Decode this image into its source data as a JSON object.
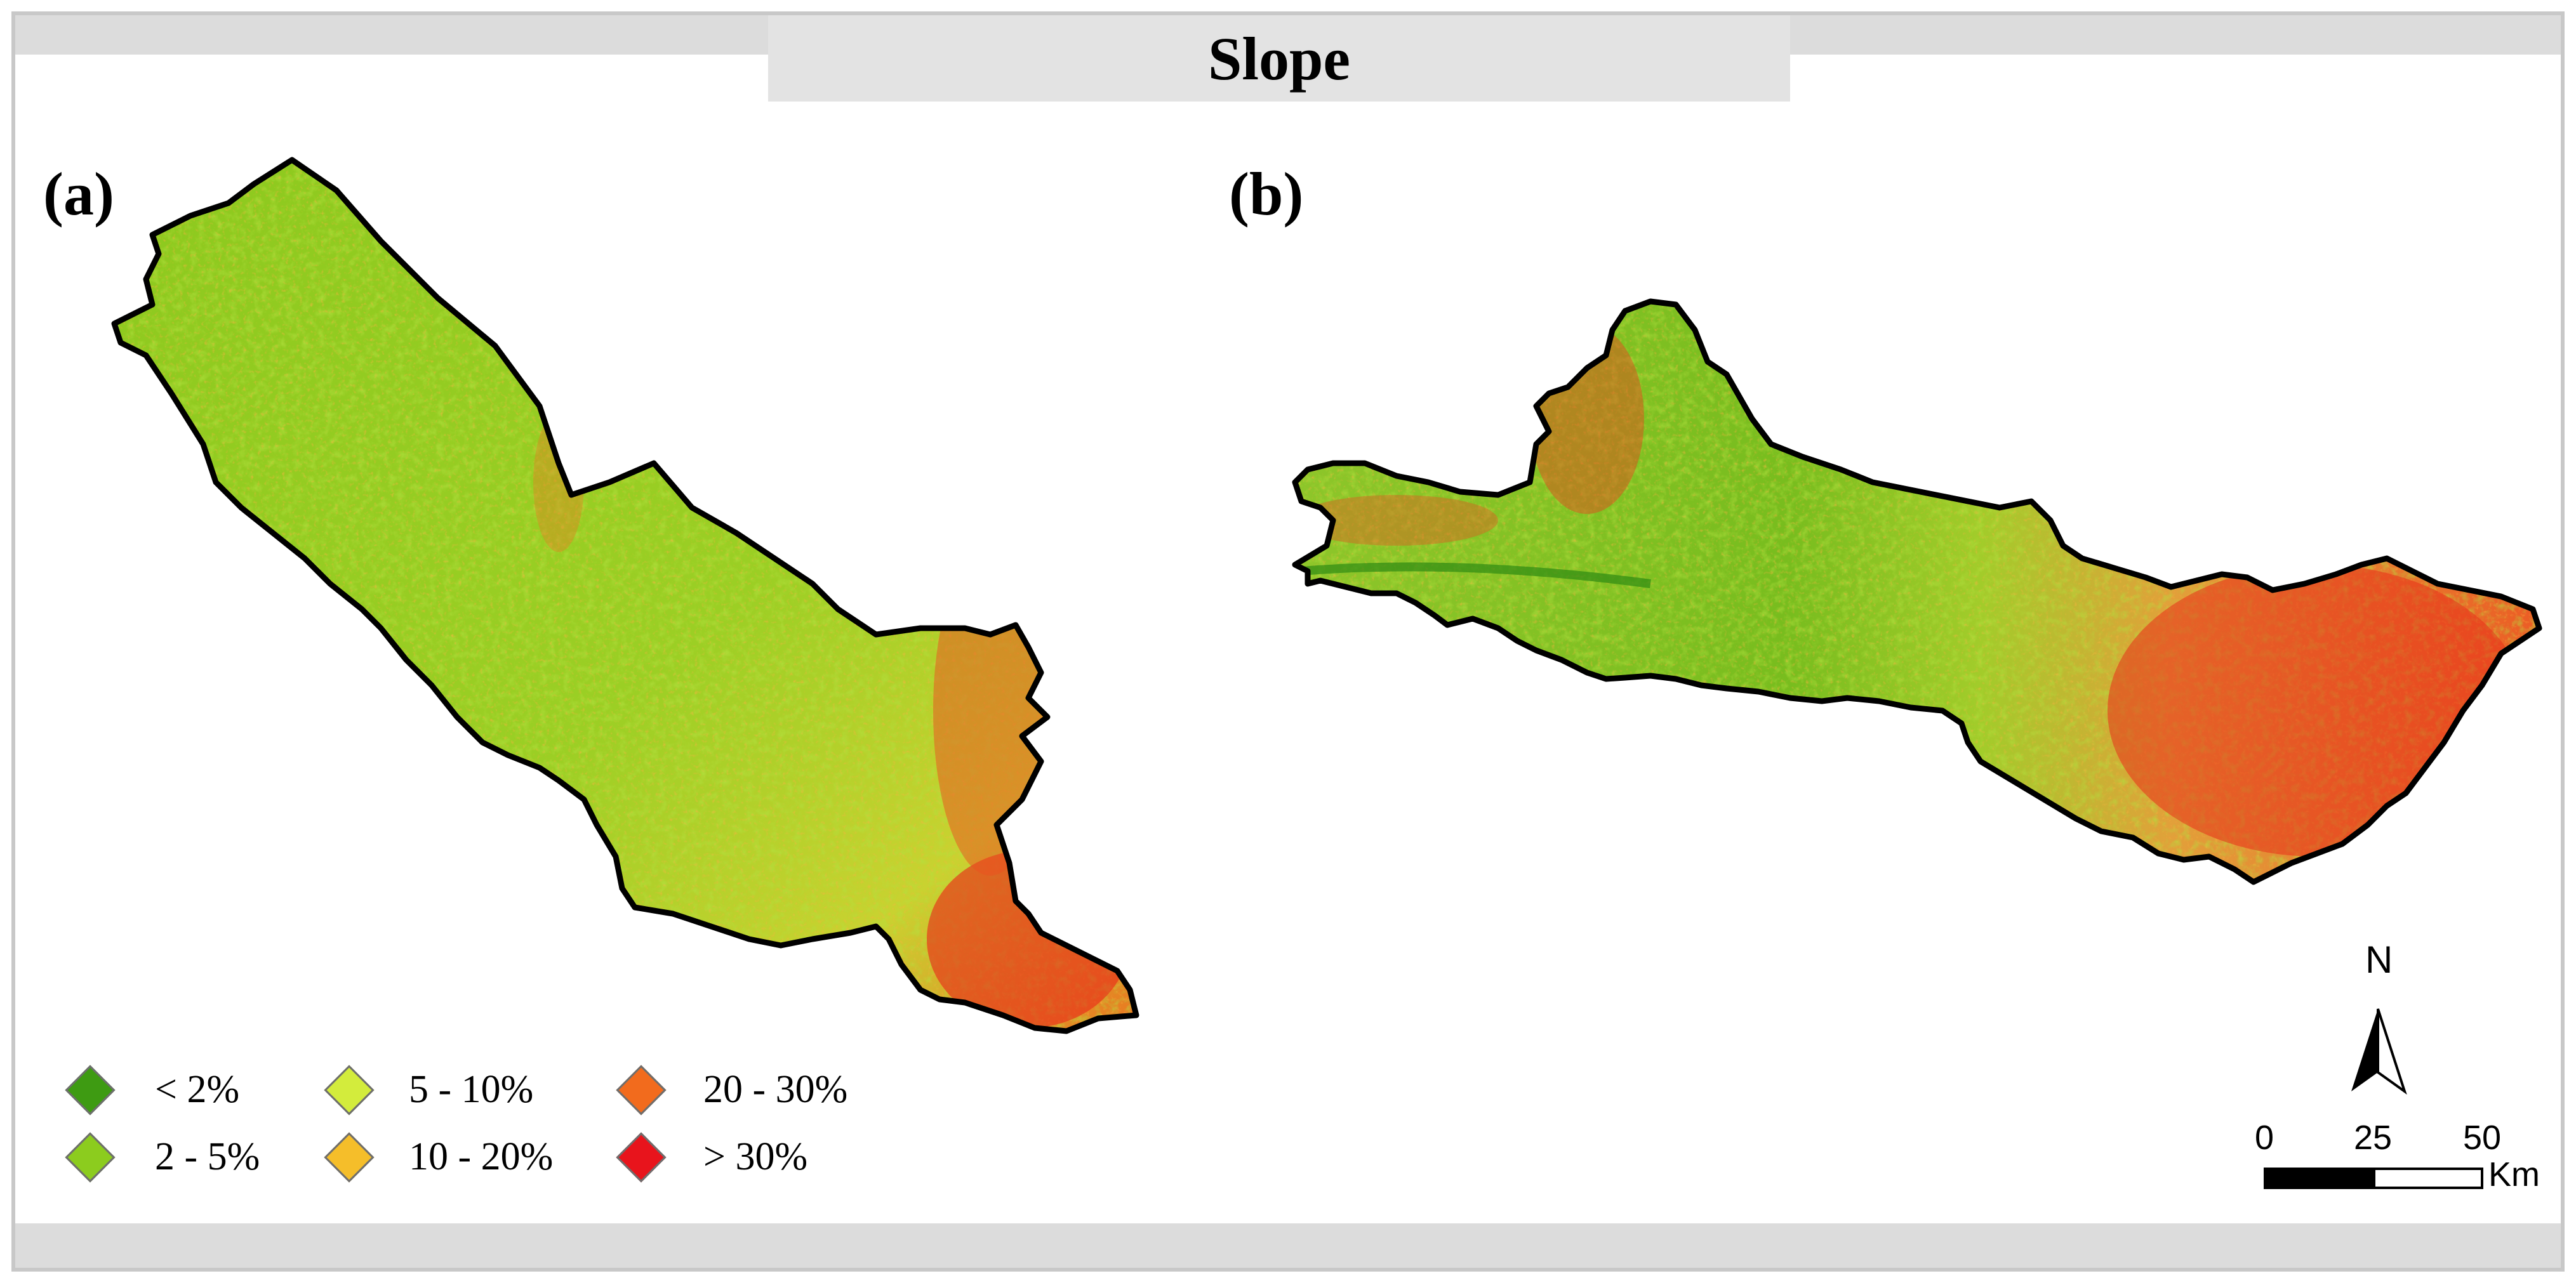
{
  "title": "Slope",
  "panels": {
    "a_label": "(a)",
    "b_label": "(b)"
  },
  "legend": {
    "items": [
      {
        "label": "< 2%",
        "color": "#3e9b12"
      },
      {
        "label": "2 - 5%",
        "color": "#8ccc1e"
      },
      {
        "label": "5 - 10%",
        "color": "#d3ec3c"
      },
      {
        "label": "10 - 20%",
        "color": "#f5be2a"
      },
      {
        "label": "20 - 30%",
        "color": "#f26b1d"
      },
      {
        "label": "> 30%",
        "color": "#e8141c"
      }
    ]
  },
  "north_arrow": {
    "letter": "N"
  },
  "scale_bar": {
    "ticks": [
      "0",
      "25",
      "50"
    ],
    "unit": "Km"
  },
  "colors": {
    "band": "#dcdcdc",
    "outline": "#000000"
  }
}
